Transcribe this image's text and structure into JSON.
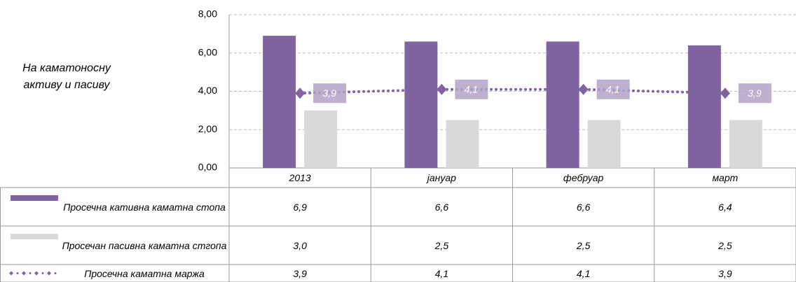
{
  "chart_data": {
    "type": "bar",
    "y_label": "На каматоносну активу и пасиву",
    "categories": [
      "2013",
      "јануар",
      "фебруар",
      "март"
    ],
    "ylim": [
      0,
      8
    ],
    "yticks": [
      {
        "value": 0,
        "label": "0,00"
      },
      {
        "value": 2,
        "label": "2,00"
      },
      {
        "value": 4,
        "label": "4,00"
      },
      {
        "value": 6,
        "label": "6,00"
      },
      {
        "value": 8,
        "label": "8,00"
      }
    ],
    "grid": true,
    "series": [
      {
        "name": "Просечна кативна каматна стопа",
        "type": "bar",
        "color": "#8064a2",
        "values": [
          6.9,
          6.6,
          6.6,
          6.4
        ],
        "value_labels": [
          "6,9",
          "6,6",
          "6,6",
          "6,4"
        ]
      },
      {
        "name": "Просечан пасивна каматна стгопа",
        "type": "bar",
        "color": "#d9d9d9",
        "values": [
          3.0,
          2.5,
          2.5,
          2.5
        ],
        "value_labels": [
          "3,0",
          "2,5",
          "2,5",
          "2,5"
        ]
      },
      {
        "name": "Просечна каматна маржа",
        "type": "line",
        "color": "#8064a2",
        "values": [
          3.9,
          4.1,
          4.1,
          3.9
        ],
        "value_labels": [
          "3,9",
          "4,1",
          "4,1",
          "3,9"
        ]
      }
    ]
  }
}
